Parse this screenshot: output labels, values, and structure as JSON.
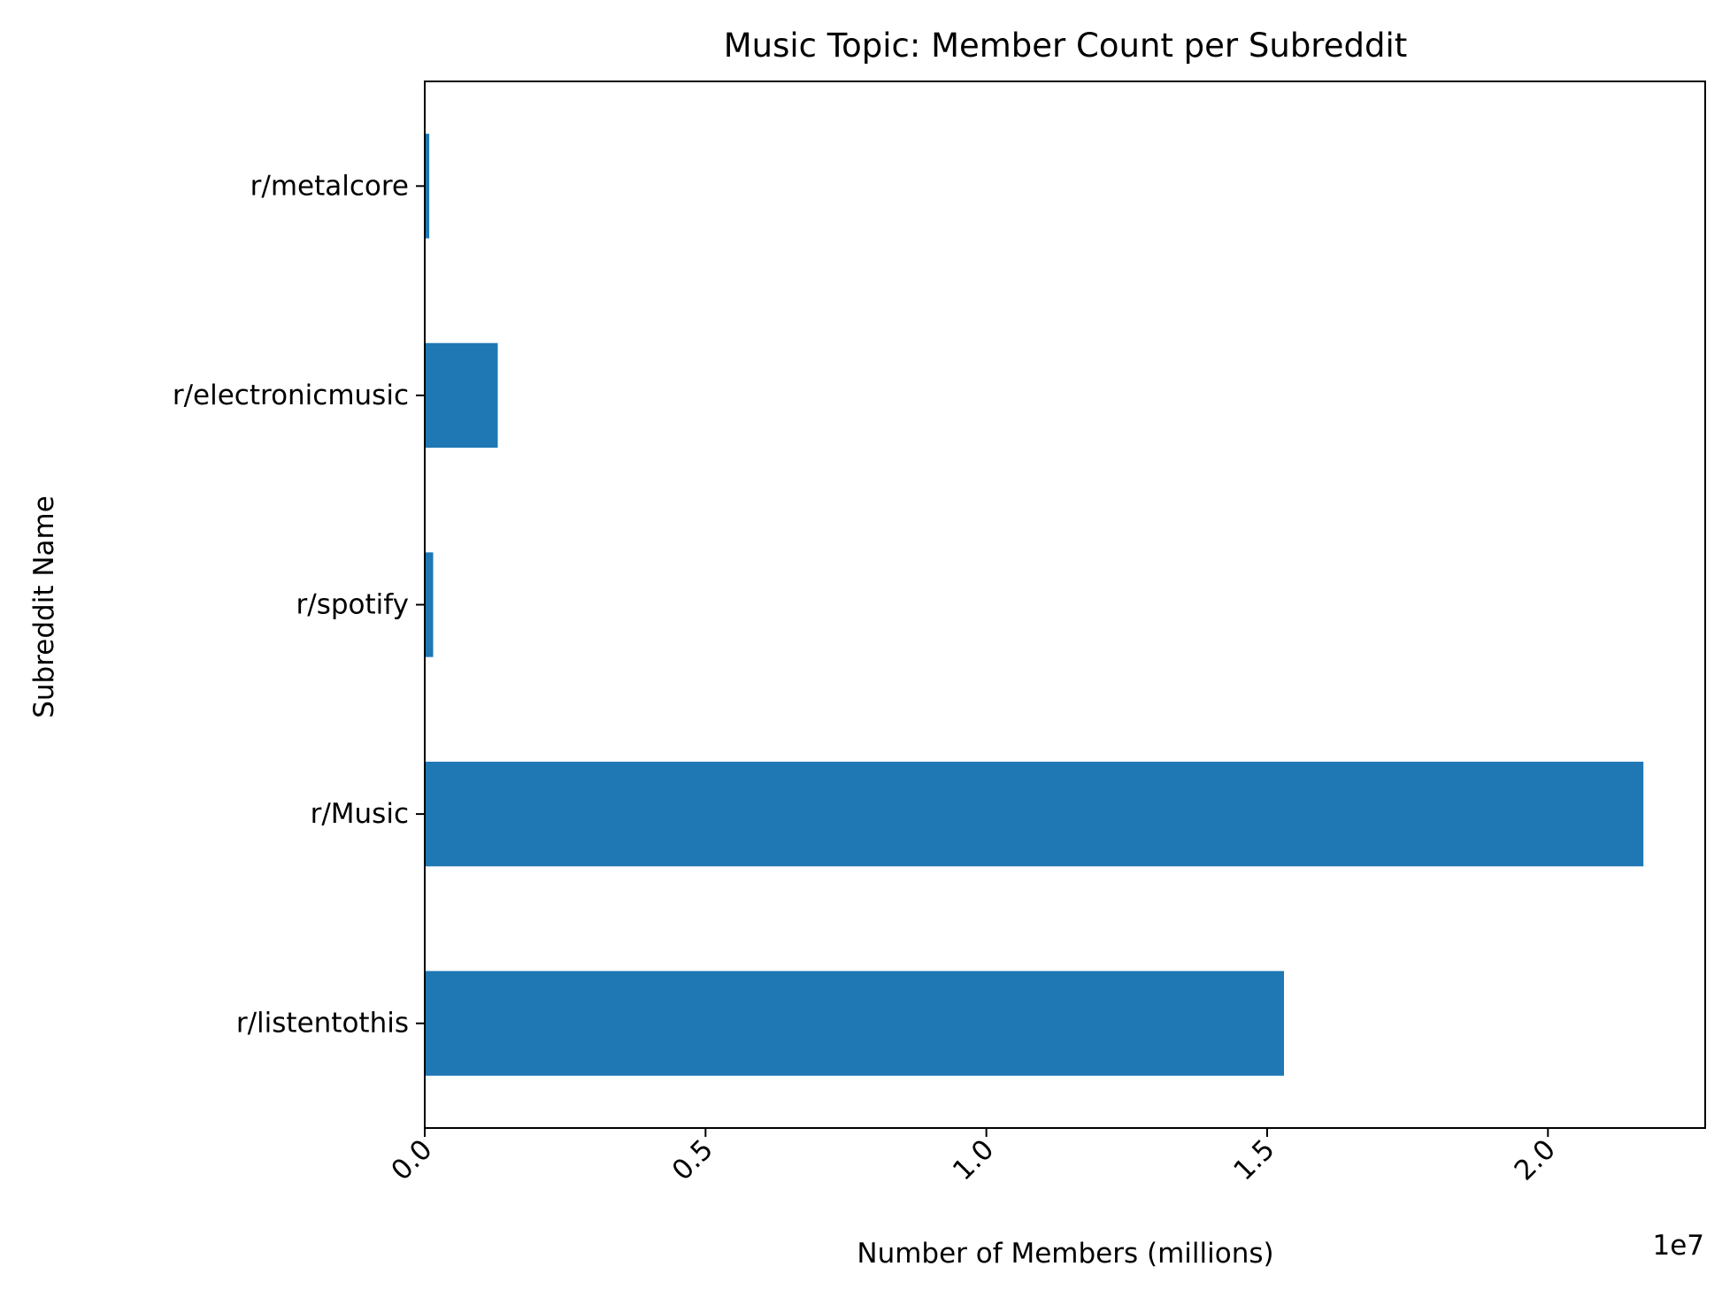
{
  "chart_data": {
    "type": "bar",
    "orientation": "horizontal",
    "title": "Music Topic: Member Count per Subreddit",
    "xlabel": "Number of Members (millions)",
    "ylabel": "Subreddit Name",
    "x_offset_text": "1e7",
    "categories": [
      "r/listentothis",
      "r/Music",
      "r/spotify",
      "r/electronicmusic",
      "r/metalcore"
    ],
    "values": [
      15300000,
      21700000,
      150000,
      1300000,
      80000
    ],
    "xlim": [
      0,
      22800000
    ],
    "xticks": [
      0,
      5000000,
      10000000,
      15000000,
      20000000
    ],
    "xtick_labels": [
      "0.0",
      "0.5",
      "1.0",
      "1.5",
      "2.0"
    ],
    "xtick_rotation_deg": 45,
    "bar_color": "#1f77b4",
    "grid": false,
    "legend": "none"
  }
}
